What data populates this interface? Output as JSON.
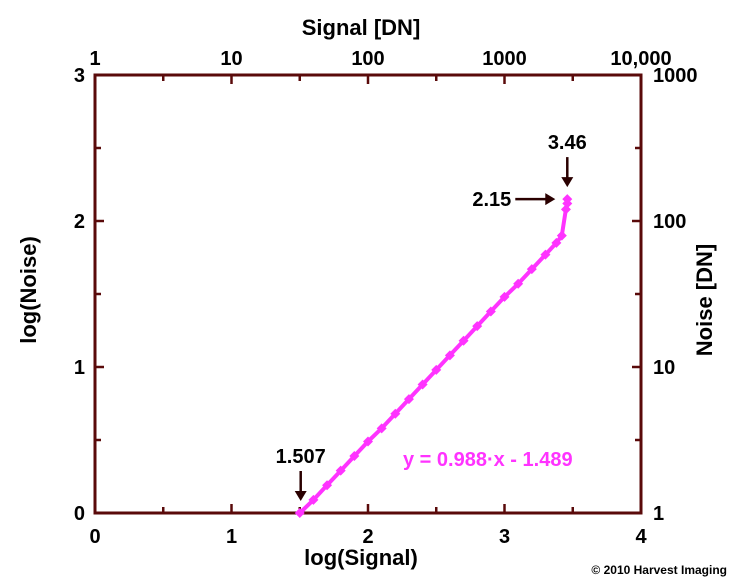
{
  "chart_data": {
    "type": "line",
    "xlabel": "log(Signal)",
    "ylabel": "log(Noise)",
    "x2label": "Signal [DN]",
    "y2label": "Noise [DN]",
    "xlim": [
      0,
      4
    ],
    "ylim": [
      0,
      3
    ],
    "x_ticks": [
      0,
      1,
      2,
      3,
      4
    ],
    "y_ticks": [
      0,
      1,
      2,
      3
    ],
    "x2_ticks": [
      {
        "value": 0,
        "label": "1"
      },
      {
        "value": 1,
        "label": "10"
      },
      {
        "value": 2,
        "label": "100"
      },
      {
        "value": 3,
        "label": "1000"
      },
      {
        "value": 4,
        "label": "10,000"
      }
    ],
    "y2_ticks": [
      {
        "value": 0,
        "label": "1"
      },
      {
        "value": 1,
        "label": "10"
      },
      {
        "value": 2,
        "label": "100"
      },
      {
        "value": 3,
        "label": "1000"
      }
    ],
    "series": [
      {
        "color": "#ff33ff",
        "x": [
          1.5,
          1.6,
          1.7,
          1.8,
          1.9,
          2.0,
          2.1,
          2.2,
          2.3,
          2.4,
          2.5,
          2.6,
          2.7,
          2.8,
          2.9,
          3.0,
          3.1,
          3.2,
          3.3,
          3.38,
          3.42,
          3.45,
          3.46,
          3.46
        ],
        "y": [
          0.0,
          0.09,
          0.19,
          0.29,
          0.39,
          0.49,
          0.58,
          0.68,
          0.78,
          0.88,
          0.98,
          1.08,
          1.18,
          1.28,
          1.38,
          1.48,
          1.57,
          1.67,
          1.77,
          1.85,
          1.9,
          2.08,
          2.12,
          2.15
        ]
      }
    ],
    "fit_equation": "y = 0.988·x - 1.489",
    "annotations": [
      {
        "text": "1.507",
        "x": 1.507,
        "y": 0,
        "arrow": "down"
      },
      {
        "text": "3.46",
        "x": 3.46,
        "y": 2.15,
        "arrow": "down"
      },
      {
        "text": "2.15",
        "x": 3.46,
        "y": 2.15,
        "arrow": "right"
      }
    ],
    "grid": false,
    "legend": "none"
  },
  "copyright": "© 2010 Harvest Imaging"
}
